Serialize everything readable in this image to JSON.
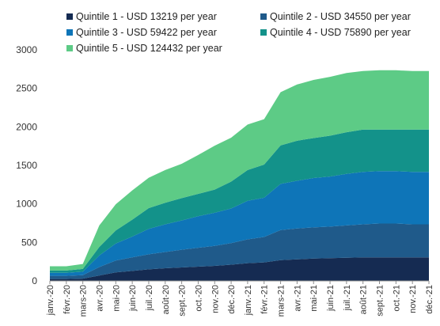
{
  "chart_data": {
    "type": "area",
    "stacked": true,
    "x": [
      "janv.-20",
      "févr.-20",
      "mars-20",
      "avr.-20",
      "mai-20",
      "juin-20",
      "juil.-20",
      "août-20",
      "sept.-20",
      "oct.-20",
      "nov.-20",
      "déc.-20",
      "janv.-21",
      "févr.-21",
      "mars-21",
      "avr.-21",
      "mai-21",
      "juin-21",
      "juil.-21",
      "août-21",
      "sept.-21",
      "oct.-21",
      "nov.-21",
      "déc.-21"
    ],
    "ylim": [
      0,
      3000
    ],
    "yticks": [
      0,
      500,
      1000,
      1500,
      2000,
      2500,
      3000
    ],
    "grid": false,
    "legend_position": "top",
    "series": [
      {
        "name": "Quintile 1 - USD 13219 per year",
        "color": "#152b52",
        "values": [
          25,
          25,
          30,
          70,
          110,
          130,
          150,
          165,
          175,
          185,
          195,
          210,
          230,
          240,
          270,
          280,
          290,
          295,
          300,
          305,
          305,
          305,
          305,
          305
        ]
      },
      {
        "name": "Quintile 2 - USD 34550 per year",
        "color": "#1f5a8a",
        "values": [
          40,
          40,
          45,
          110,
          155,
          175,
          195,
          210,
          230,
          245,
          260,
          280,
          310,
          330,
          390,
          400,
          405,
          410,
          420,
          430,
          440,
          440,
          430,
          430
        ]
      },
      {
        "name": "Quintile 3 - USD 59422 per year",
        "color": "#0e75b8",
        "values": [
          40,
          40,
          45,
          150,
          220,
          270,
          330,
          360,
          380,
          410,
          430,
          450,
          500,
          510,
          600,
          620,
          640,
          650,
          670,
          680,
          680,
          680,
          680,
          680
        ]
      },
      {
        "name": "Quintile 4 - USD 75890 per year",
        "color": "#13928a",
        "values": [
          30,
          30,
          35,
          110,
          170,
          220,
          270,
          280,
          290,
          290,
          300,
          350,
          400,
          430,
          500,
          520,
          520,
          530,
          540,
          550,
          540,
          540,
          550,
          550
        ]
      },
      {
        "name": "Quintile 5 - USD 124432 per year",
        "color": "#5dcb86",
        "values": [
          55,
          55,
          65,
          280,
          340,
          380,
          395,
          425,
          445,
          505,
          570,
          570,
          590,
          590,
          690,
          730,
          755,
          765,
          770,
          760,
          770,
          770,
          760,
          760
        ]
      }
    ]
  }
}
